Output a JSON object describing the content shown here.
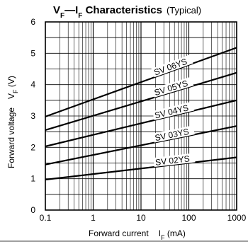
{
  "chart_data": {
    "type": "line",
    "title_main": "V",
    "title_sub1": "F",
    "title_sep": "—I",
    "title_sub2": "F",
    "title_rest": " Characteristics",
    "title_paren": "(Typical)",
    "xlabel_main": "Forward current",
    "xlabel_sym": "I",
    "xlabel_sub": "F",
    "xlabel_unit": " (mA)",
    "ylabel_main": "Forward voltage",
    "ylabel_sym": "V",
    "ylabel_sub": "F",
    "ylabel_unit": " (V)",
    "x_scale": "log",
    "xlim": [
      0.1,
      1000
    ],
    "ylim": [
      0,
      6
    ],
    "x_ticks": [
      {
        "value": 0.1,
        "label": "0.1"
      },
      {
        "value": 1,
        "label": "1"
      },
      {
        "value": 10,
        "label": "10"
      },
      {
        "value": 100,
        "label": "100"
      },
      {
        "value": 1000,
        "label": "1000"
      }
    ],
    "y_ticks": [
      {
        "value": 0,
        "label": "0"
      },
      {
        "value": 1,
        "label": "1"
      },
      {
        "value": 2,
        "label": "2"
      },
      {
        "value": 3,
        "label": "3"
      },
      {
        "value": 4,
        "label": "4"
      },
      {
        "value": 5,
        "label": "5"
      },
      {
        "value": 6,
        "label": "6"
      }
    ],
    "grid": true,
    "series": [
      {
        "name": "SV 02YS",
        "x": [
          0.1,
          1000
        ],
        "y": [
          0.97,
          1.68
        ]
      },
      {
        "name": "SV 03YS",
        "x": [
          0.1,
          1000
        ],
        "y": [
          1.45,
          2.68
        ]
      },
      {
        "name": "SV 04YS",
        "x": [
          0.1,
          1000
        ],
        "y": [
          2.03,
          3.5
        ]
      },
      {
        "name": "SV 05YS",
        "x": [
          0.1,
          1000
        ],
        "y": [
          2.55,
          4.38
        ]
      },
      {
        "name": "SV 06YS",
        "x": [
          0.1,
          1000
        ],
        "y": [
          2.98,
          5.18
        ]
      }
    ]
  }
}
